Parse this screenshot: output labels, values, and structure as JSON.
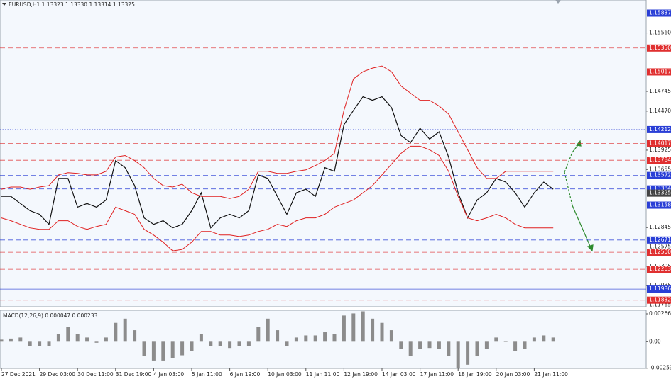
{
  "chart_data": [
    {
      "type": "line",
      "title": "EURUSD,H1  1.13323 1.13330 1.13314 1.13325",
      "categories": [
        "27 Dec 2021",
        null,
        null,
        null,
        "29 Dec 03:00",
        null,
        null,
        null,
        "30 Dec 11:00",
        null,
        null,
        null,
        "31 Dec 19:00",
        null,
        null,
        null,
        "4 Jan 03:00",
        null,
        null,
        null,
        "5 Jan 11:00",
        null,
        null,
        null,
        "6 Jan 19:00",
        null,
        null,
        null,
        "10 Jan 03:00",
        null,
        null,
        null,
        "11 Jan 11:00",
        null,
        null,
        null,
        "12 Jan 19:00",
        null,
        null,
        null,
        "14 Jan 03:00",
        null,
        null,
        null,
        "17 Jan 11:00",
        null,
        null,
        null,
        "18 Jan 19:00",
        null,
        null,
        null,
        "20 Jan 03:00",
        null,
        null,
        null,
        "21 Jan 11:00",
        null,
        null
      ],
      "series": [
        {
          "color": "#111111",
          "values": [
            1.1328,
            1.1328,
            1.1318,
            1.1308,
            1.1303,
            1.1289,
            1.1353,
            1.1353,
            1.1313,
            1.1318,
            1.1313,
            1.1323,
            1.1378,
            1.1368,
            1.1343,
            1.1298,
            1.1289,
            1.1294,
            1.1284,
            1.1289,
            1.1308,
            1.1333,
            1.1284,
            1.1298,
            1.1303,
            1.1298,
            1.1308,
            1.1358,
            1.1353,
            1.1328,
            1.1303,
            1.1333,
            1.1338,
            1.1328,
            1.1368,
            1.1363,
            1.1428,
            1.1448,
            1.1467,
            1.1462,
            1.1467,
            1.1452,
            1.1413,
            1.1403,
            1.1423,
            1.1408,
            1.1418,
            1.1383,
            1.1333,
            1.1298,
            1.1323,
            1.1333,
            1.1353,
            1.1348,
            1.1333,
            1.1313,
            1.1333,
            1.1348,
            1.1338
          ]
        },
        {
          "color": "#e02020",
          "values": [
            1.1338,
            1.1341,
            1.1341,
            1.1338,
            1.1341,
            1.1343,
            1.1358,
            1.1361,
            1.136,
            1.1358,
            1.1358,
            1.1363,
            1.1383,
            1.1385,
            1.1378,
            1.1368,
            1.1353,
            1.1343,
            1.1341,
            1.1345,
            1.1333,
            1.1328,
            1.1328,
            1.1328,
            1.1325,
            1.1328,
            1.1338,
            1.1363,
            1.1363,
            1.136,
            1.136,
            1.1363,
            1.1365,
            1.1371,
            1.1378,
            1.1388,
            1.1448,
            1.1492,
            1.1502,
            1.1507,
            1.151,
            1.1502,
            1.1482,
            1.1472,
            1.1462,
            1.1462,
            1.1454,
            1.1443,
            1.1418,
            1.1393,
            1.1368,
            1.1353,
            1.1353,
            1.1363,
            1.1363,
            1.1363,
            1.1363,
            1.1363,
            1.1363
          ]
        },
        {
          "color": "#e02020",
          "values": [
            1.1298,
            1.1294,
            1.1289,
            1.1284,
            1.1282,
            1.1282,
            1.1294,
            1.1294,
            1.1286,
            1.1282,
            1.1286,
            1.1289,
            1.1313,
            1.1308,
            1.1303,
            1.1282,
            1.1274,
            1.1264,
            1.1252,
            1.1254,
            1.1264,
            1.1279,
            1.1279,
            1.1274,
            1.1274,
            1.1272,
            1.1274,
            1.1279,
            1.1282,
            1.1289,
            1.1286,
            1.1294,
            1.1298,
            1.1298,
            1.1303,
            1.1313,
            1.1318,
            1.1323,
            1.1333,
            1.1343,
            1.1358,
            1.1373,
            1.1388,
            1.1398,
            1.1398,
            1.1393,
            1.1385,
            1.1363,
            1.1328,
            1.1298,
            1.1294,
            1.1298,
            1.1303,
            1.1298,
            1.1289,
            1.1284,
            1.1284,
            1.1284,
            1.1284
          ]
        }
      ],
      "ylim": [
        1.1174,
        1.1602
      ],
      "yticks": [
        {
          "value": 1.1556,
          "label": "1.15560"
        },
        1.14745,
        {
          "value": 1.1447,
          "label": "1.14470"
        },
        1.13925,
        1.13655,
        1.12845,
        1.12575,
        1.12305,
        1.12035,
        1.11765
      ],
      "levels": [
        {
          "value": 1.15837,
          "label": "1.15837",
          "color": "#2a3fd6",
          "style": "dashed"
        },
        {
          "value": 1.1535,
          "label": "1.15350",
          "color": "#e03030",
          "style": "dashed"
        },
        {
          "value": 1.15017,
          "label": "1.15017",
          "color": "#e03030",
          "style": "dashed"
        },
        {
          "value": 1.14212,
          "label": "1.14212",
          "color": "#2a3fd6",
          "style": "dotted"
        },
        {
          "value": 1.14017,
          "label": "1.14017",
          "color": "#e03030",
          "style": "dashed"
        },
        {
          "value": 1.13784,
          "label": "1.13784",
          "color": "#e03030",
          "style": "dashed"
        },
        {
          "value": 1.13572,
          "label": "1.13572",
          "color": "#2a3fd6",
          "style": "dashed"
        },
        {
          "value": 1.13384,
          "label": "1.13384",
          "color": "#2a3fd6",
          "style": "dashed"
        },
        {
          "value": 1.13325,
          "label": "1.13325",
          "color": "#444444",
          "style": "solid"
        },
        {
          "value": 1.13158,
          "label": "1.13158",
          "color": "#2a3fd6",
          "style": "dotted"
        },
        {
          "value": 1.12671,
          "label": "1.12671",
          "color": "#2a3fd6",
          "style": "dashed"
        },
        {
          "value": 1.125,
          "label": "1.12500",
          "color": "#e03030",
          "style": "dashed"
        },
        {
          "value": 1.12263,
          "label": "1.12263",
          "color": "#e03030",
          "style": "dashed"
        },
        {
          "value": 1.11986,
          "label": "1.11986",
          "color": "#2a3fd6",
          "style": "solid"
        },
        {
          "value": 1.11832,
          "label": "1.11832",
          "color": "#e03030",
          "style": "dashed"
        }
      ]
    },
    {
      "type": "bar",
      "title": "MACD(12,26,9) 0.000047 0.000233",
      "color": "#8c8c8c",
      "values": [
        0.0002,
        0.0003,
        0.0004,
        -0.0004,
        -0.0004,
        -0.0004,
        0.0007,
        0.0014,
        0.0007,
        0.0004,
        -0.0001,
        0.0004,
        0.0018,
        0.0022,
        0.0011,
        -0.0014,
        -0.0018,
        -0.0018,
        -0.0016,
        -0.0013,
        -0.0009,
        0.0007,
        -0.0004,
        -0.0004,
        -0.0006,
        -0.0004,
        -0.0004,
        0.0014,
        0.0022,
        0.0011,
        -0.0004,
        0.0004,
        0.0006,
        0.0006,
        0.0009,
        0.0007,
        0.0025,
        0.0027,
        0.0029,
        0.0022,
        0.0018,
        0.0011,
        -0.0007,
        -0.0014,
        -0.0007,
        -0.0006,
        -0.0007,
        -0.0014,
        -0.0025,
        -0.0022,
        -0.0014,
        -0.0007,
        0.0004,
        0,
        -0.0009,
        -0.0007,
        0.0004,
        0.0006,
        0.0004
      ],
      "ylim": [
        -0.00255,
        0.003
      ],
      "yticks": [
        0.002661,
        {
          "value": 0,
          "label": "0.00"
        },
        -0.002533
      ]
    }
  ]
}
